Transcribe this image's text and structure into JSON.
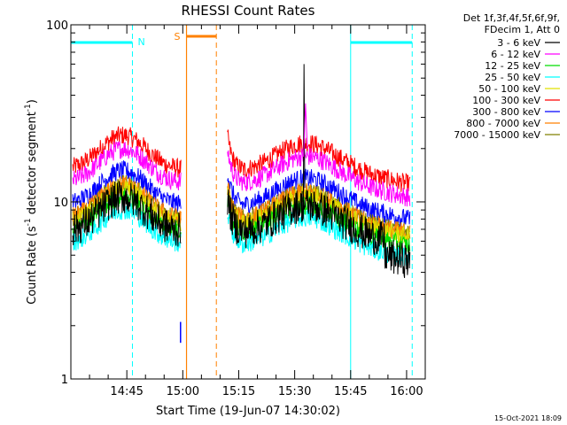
{
  "chart_data": {
    "type": "line",
    "title": "RHESSI Count Rates",
    "xlabel": "Start Time (19-Jun-07 14:30:02)",
    "ylabel": "Count Rate (s",
    "ylabel_sup": "-1",
    "ylabel_mid": " detector segment",
    "ylabel_sup2": "-1",
    "ylabel_end": ")",
    "y_scale": "log",
    "ylim": [
      1,
      100
    ],
    "y_ticks": [
      {
        "value": 1,
        "label": "1"
      },
      {
        "value": 10,
        "label": "10"
      },
      {
        "value": 100,
        "label": "100"
      }
    ],
    "xlim_minutes": [
      0,
      95
    ],
    "x_ticks": [
      {
        "minute": 15,
        "label": "14:45"
      },
      {
        "minute": 30,
        "label": "15:00"
      },
      {
        "minute": 45,
        "label": "15:15"
      },
      {
        "minute": 60,
        "label": "15:30"
      },
      {
        "minute": 75,
        "label": "15:45"
      },
      {
        "minute": 90,
        "label": "16:00"
      }
    ],
    "legend_header": [
      "Det 1f,3f,4f,5f,6f,9f,",
      "FDecim 1, Att 0"
    ],
    "legend_position": "right",
    "series": [
      {
        "name": "3 - 6 keV",
        "color": "#000000",
        "base": 8.5
      },
      {
        "name": "6 - 12 keV",
        "color": "#ff00ff",
        "base": 16
      },
      {
        "name": "12 - 25 keV",
        "color": "#00dd00",
        "base": 8.5
      },
      {
        "name": "25 - 50 keV",
        "color": "#00ffff",
        "base": 7.2
      },
      {
        "name": "50 - 100 keV",
        "color": "#e0e000",
        "base": 9.5
      },
      {
        "name": "100 - 300 keV",
        "color": "#ff0000",
        "base": 19
      },
      {
        "name": "300 - 800 keV",
        "color": "#0000ff",
        "base": 12
      },
      {
        "name": "800 - 7000 keV",
        "color": "#ff8000",
        "base": 10
      },
      {
        "name": "7000 - 15000 keV",
        "color": "#808000",
        "base": 10
      }
    ],
    "data_segments": [
      {
        "start": 0.5,
        "end": 29.5
      },
      {
        "start": 42,
        "end": 91
      }
    ],
    "time_markers": {
      "night": [
        {
          "start": 0,
          "end": 16.5,
          "label": "N"
        },
        {
          "start": 75,
          "end": 91.5,
          "label": ""
        }
      ],
      "saa": {
        "start": 31,
        "end": 39,
        "label": "S"
      }
    },
    "colors": {
      "night": "#00ffff",
      "saa": "#ff8000",
      "axis": "#000000"
    },
    "timestamp": "15-Oct-2021 18:09"
  }
}
